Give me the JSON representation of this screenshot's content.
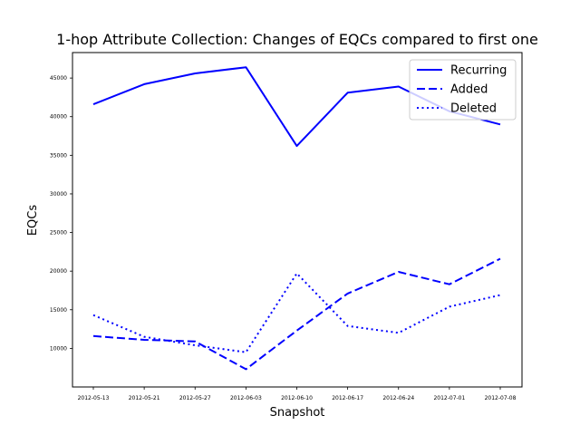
{
  "chart_data": {
    "type": "line",
    "title": "1-hop Attribute Collection: Changes of  EQCs compared to first one",
    "xlabel": "Snapshot",
    "ylabel": "EQCs",
    "categories": [
      "2012-05-13",
      "2012-05-21",
      "2012-05-27",
      "2012-06-03",
      "2012-06-10",
      "2012-06-17",
      "2012-06-24",
      "2012-07-01",
      "2012-07-08"
    ],
    "yticks": [
      10000,
      15000,
      20000,
      25000,
      30000,
      35000,
      40000,
      45000
    ],
    "ylim": [
      5000,
      48300
    ],
    "grid": false,
    "legend_position": "top-right",
    "series": [
      {
        "name": "Recurring",
        "style": "solid",
        "color": "#0000ff",
        "values": [
          41600,
          44200,
          45600,
          46400,
          36200,
          43100,
          43900,
          40700,
          39000
        ]
      },
      {
        "name": "Added",
        "style": "dashed",
        "color": "#0000ff",
        "values": [
          11600,
          11100,
          10900,
          7300,
          12300,
          17100,
          19900,
          18300,
          21600
        ]
      },
      {
        "name": "Deleted",
        "style": "dotted",
        "color": "#0000ff",
        "values": [
          14300,
          11500,
          10400,
          9500,
          19700,
          12900,
          12000,
          15400,
          16900
        ]
      }
    ]
  }
}
